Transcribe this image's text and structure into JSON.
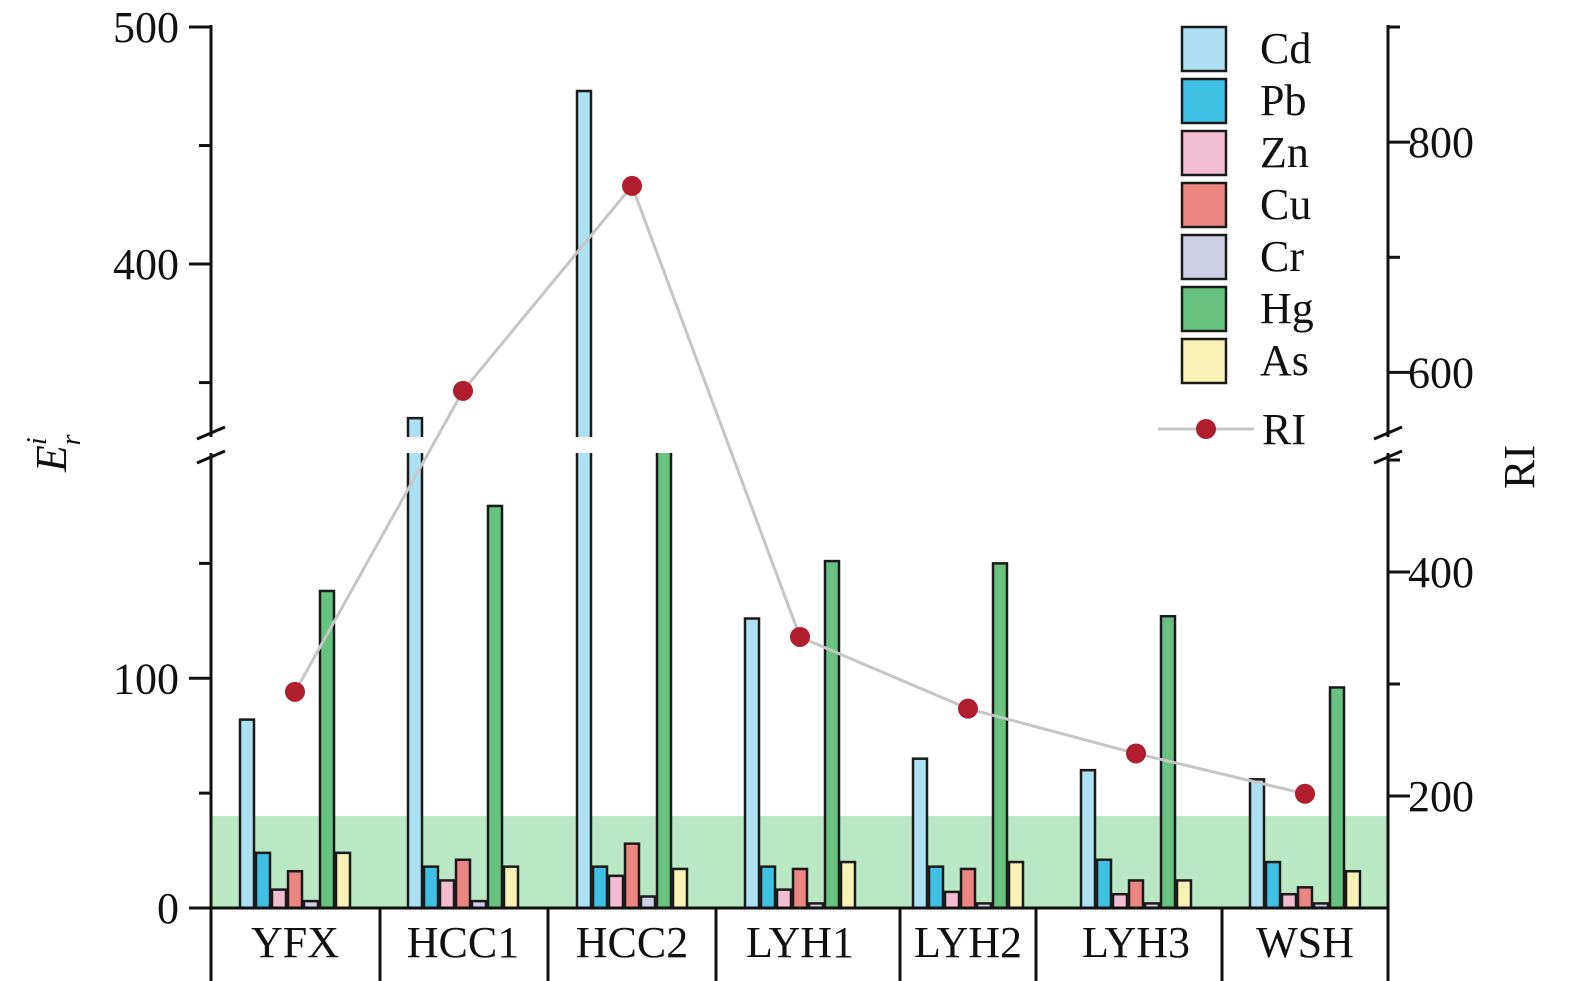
{
  "chart_data": {
    "type": "bar",
    "categories": [
      "YFX",
      "HCC1",
      "HCC2",
      "LYH1",
      "LYH2",
      "LYH3",
      "WSH"
    ],
    "series": [
      {
        "name": "Cd",
        "color": "#ade0f2",
        "values": [
          82,
          335,
          473,
          126,
          65,
          60,
          56
        ]
      },
      {
        "name": "Pb",
        "color": "#3fc1e6",
        "values": [
          24,
          18,
          18,
          18,
          18,
          21,
          20
        ]
      },
      {
        "name": "Zn",
        "color": "#f2bcd2",
        "values": [
          8,
          12,
          14,
          8,
          7,
          6,
          6
        ]
      },
      {
        "name": "Cu",
        "color": "#eb8582",
        "values": [
          16,
          21,
          28,
          17,
          17,
          12,
          9
        ]
      },
      {
        "name": "Cr",
        "color": "#cdd0e4",
        "values": [
          3,
          3,
          5,
          2,
          2,
          2,
          2
        ]
      },
      {
        "name": "Hg",
        "color": "#66c27e",
        "values": [
          138,
          175,
          255,
          151,
          150,
          127,
          96
        ]
      },
      {
        "name": "As",
        "color": "#f7f1b5",
        "values": [
          24,
          18,
          17,
          20,
          20,
          12,
          16
        ]
      }
    ],
    "line": {
      "name": "RI",
      "color": "#b01e2e",
      "line_color": "#c6c6c6",
      "values": [
        293,
        584,
        762,
        342,
        278,
        238,
        202
      ]
    },
    "left_axis": {
      "label_main": "E",
      "label_sup": "i",
      "label_sub": "r",
      "ylim_lower": [
        0,
        195
      ],
      "ylim_upper": [
        330,
        500
      ],
      "ticks_labeled_lower": [
        0,
        100
      ],
      "ticks_labeled_upper": [
        400,
        500
      ],
      "ticks_minor": [
        50,
        150,
        350,
        450
      ]
    },
    "right_axis": {
      "label": "RI",
      "ylim_lower": [
        100,
        500
      ],
      "ylim_upper": [
        550,
        900
      ],
      "ticks_labeled": [
        200,
        400,
        600,
        800
      ],
      "ticks_minor": [
        300,
        500,
        700,
        900
      ]
    },
    "threshold": {
      "value": 40,
      "color": "#5bc86d"
    },
    "legend_placement": "top-right",
    "grid": false
  }
}
